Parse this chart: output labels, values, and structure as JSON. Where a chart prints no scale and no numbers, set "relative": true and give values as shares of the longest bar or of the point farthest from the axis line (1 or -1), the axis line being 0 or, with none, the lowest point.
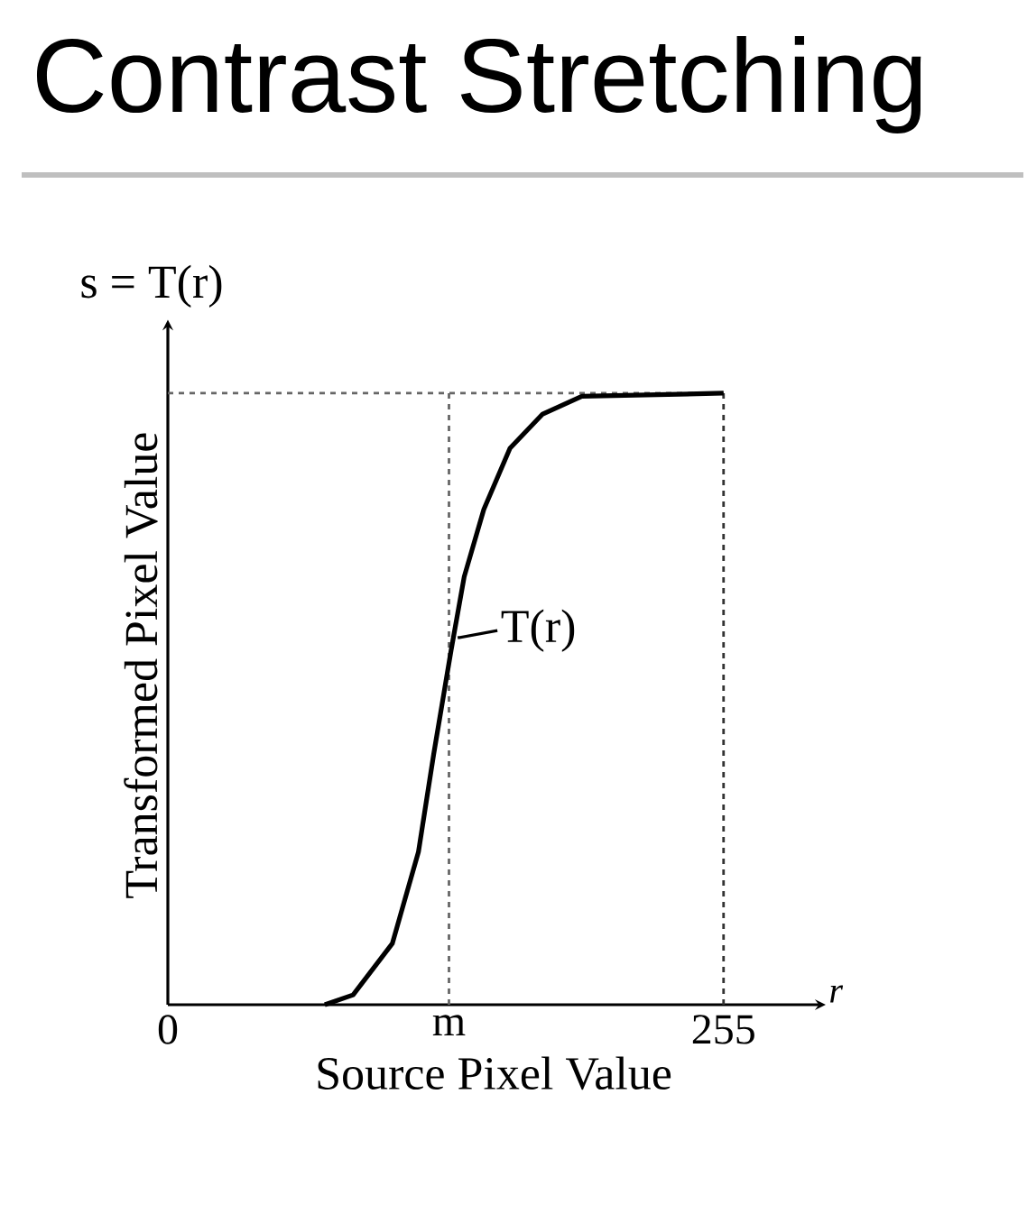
{
  "chart_data": {
    "type": "line",
    "title": "Contrast Stretching",
    "xlabel": "Source Pixel Value",
    "ylabel": "Transformed Pixel Value",
    "relative": true,
    "x": [
      72,
      85,
      103,
      115,
      122,
      130,
      136,
      145,
      157,
      172,
      190,
      255
    ],
    "values": [
      0,
      0.016,
      0.1,
      0.25,
      0.41,
      0.58,
      0.7,
      0.81,
      0.91,
      0.966,
      0.995,
      1
    ],
    "color": "#000000",
    "line_style": "solid",
    "xlim": [
      0,
      299
    ],
    "xticks": [
      0,
      {
        "value": 129,
        "label": "m"
      },
      255
    ],
    "ref_lines": [
      {
        "axis": "y",
        "value": 1,
        "line_style": "dashed",
        "color": "#666666"
      },
      {
        "axis": "x",
        "value": 129,
        "line_style": "dashed",
        "color": "#666666"
      },
      {
        "axis": "x",
        "value": 255,
        "line_style": "dashed",
        "color": "#333333"
      }
    ],
    "annotations": [
      "s = T(r)",
      "r",
      {
        "text": "T(r)",
        "x": 133,
        "y": 0.6
      }
    ]
  }
}
